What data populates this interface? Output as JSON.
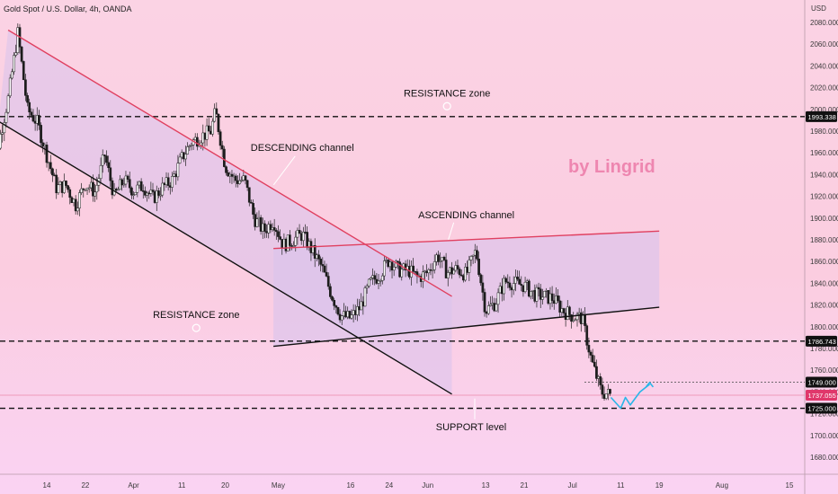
{
  "header": {
    "title": "Gold Spot / U.S. Dollar, 4h, OANDA"
  },
  "watermark": "by Lingrid",
  "colors": {
    "candle": "#ffffff",
    "wick": "#222222",
    "channel_desc_fill": "#d9c3ec",
    "resistance_red": "#e04060",
    "support_black": "#111111",
    "projection": "#29b6e8",
    "price_tag": "#e0386b"
  },
  "chart_data": {
    "type": "candlestick",
    "title": "Gold Spot / U.S. Dollar, 4h, OANDA",
    "xlabel": "",
    "ylabel": "USD",
    "ylim": [
      1665,
      2100
    ],
    "y_ticks": [
      "2080.000",
      "2060.000",
      "2040.000",
      "2020.000",
      "2000.000",
      "1980.000",
      "1960.000",
      "1940.000",
      "1920.000",
      "1900.000",
      "1880.000",
      "1860.000",
      "1840.000",
      "1820.000",
      "1800.000",
      "1780.000",
      "1760.000",
      "1740.000",
      "1720.000",
      "1700.000",
      "1680.000"
    ],
    "y_tick_values": [
      2080,
      2060,
      2040,
      2020,
      2000,
      1980,
      1960,
      1940,
      1920,
      1900,
      1880,
      1860,
      1840,
      1820,
      1800,
      1780,
      1760,
      1740,
      1720,
      1700,
      1680
    ],
    "x_ticks": [
      {
        "label": "14",
        "date": "2022-03-14"
      },
      {
        "label": "22",
        "date": "2022-03-22"
      },
      {
        "label": "Apr",
        "date": "2022-04-01"
      },
      {
        "label": "11",
        "date": "2022-04-11"
      },
      {
        "label": "20",
        "date": "2022-04-20"
      },
      {
        "label": "May",
        "date": "2022-05-01"
      },
      {
        "label": "16",
        "date": "2022-05-16"
      },
      {
        "label": "24",
        "date": "2022-05-24"
      },
      {
        "label": "Jun",
        "date": "2022-06-01"
      },
      {
        "label": "13",
        "date": "2022-06-13"
      },
      {
        "label": "21",
        "date": "2022-06-21"
      },
      {
        "label": "Jul",
        "date": "2022-07-01"
      },
      {
        "label": "11",
        "date": "2022-07-11"
      },
      {
        "label": "19",
        "date": "2022-07-19"
      },
      {
        "label": "Aug",
        "date": "2022-08-01"
      },
      {
        "label": "15",
        "date": "2022-08-15"
      }
    ],
    "price_path": [
      [
        "2022-03-02",
        1930
      ],
      [
        "2022-03-04",
        1968
      ],
      [
        "2022-03-06",
        2010
      ],
      [
        "2022-03-08",
        2070
      ],
      [
        "2022-03-10",
        2000
      ],
      [
        "2022-03-12",
        1988
      ],
      [
        "2022-03-14",
        1958
      ],
      [
        "2022-03-16",
        1928
      ],
      [
        "2022-03-18",
        1930
      ],
      [
        "2022-03-20",
        1912
      ],
      [
        "2022-03-22",
        1932
      ],
      [
        "2022-03-24",
        1924
      ],
      [
        "2022-03-26",
        1958
      ],
      [
        "2022-03-28",
        1920
      ],
      [
        "2022-03-30",
        1935
      ],
      [
        "2022-04-01",
        1925
      ],
      [
        "2022-04-03",
        1930
      ],
      [
        "2022-04-05",
        1918
      ],
      [
        "2022-04-07",
        1928
      ],
      [
        "2022-04-09",
        1935
      ],
      [
        "2022-04-11",
        1955
      ],
      [
        "2022-04-13",
        1970
      ],
      [
        "2022-04-15",
        1975
      ],
      [
        "2022-04-17",
        1980
      ],
      [
        "2022-04-18",
        1998
      ],
      [
        "2022-04-20",
        1948
      ],
      [
        "2022-04-22",
        1935
      ],
      [
        "2022-04-24",
        1935
      ],
      [
        "2022-04-26",
        1900
      ],
      [
        "2022-04-28",
        1888
      ],
      [
        "2022-04-30",
        1898
      ],
      [
        "2022-05-02",
        1875
      ],
      [
        "2022-05-04",
        1880
      ],
      [
        "2022-05-06",
        1885
      ],
      [
        "2022-05-08",
        1870
      ],
      [
        "2022-05-10",
        1855
      ],
      [
        "2022-05-12",
        1830
      ],
      [
        "2022-05-14",
        1810
      ],
      [
        "2022-05-16",
        1808
      ],
      [
        "2022-05-18",
        1818
      ],
      [
        "2022-05-20",
        1840
      ],
      [
        "2022-05-22",
        1848
      ],
      [
        "2022-05-24",
        1862
      ],
      [
        "2022-05-26",
        1852
      ],
      [
        "2022-05-28",
        1852
      ],
      [
        "2022-05-30",
        1845
      ],
      [
        "2022-06-01",
        1850
      ],
      [
        "2022-06-03",
        1866
      ],
      [
        "2022-06-05",
        1850
      ],
      [
        "2022-06-07",
        1853
      ],
      [
        "2022-06-09",
        1848
      ],
      [
        "2022-06-11",
        1870
      ],
      [
        "2022-06-13",
        1815
      ],
      [
        "2022-06-15",
        1822
      ],
      [
        "2022-06-17",
        1842
      ],
      [
        "2022-06-19",
        1840
      ],
      [
        "2022-06-21",
        1838
      ],
      [
        "2022-06-23",
        1830
      ],
      [
        "2022-06-25",
        1828
      ],
      [
        "2022-06-27",
        1826
      ],
      [
        "2022-06-29",
        1815
      ],
      [
        "2022-07-01",
        1810
      ],
      [
        "2022-07-03",
        1808
      ],
      [
        "2022-07-05",
        1768
      ],
      [
        "2022-07-07",
        1740
      ],
      [
        "2022-07-09",
        1737
      ]
    ],
    "trendlines": [
      {
        "label": "DESCENDING channel upper",
        "from": [
          "2022-03-06",
          2073
        ],
        "to": [
          "2022-06-06",
          1828
        ],
        "role": "descending-upper"
      },
      {
        "label": "DESCENDING channel lower",
        "from": [
          "2022-03-04",
          1989
        ],
        "to": [
          "2022-06-06",
          1738
        ],
        "role": "descending-lower"
      },
      {
        "label": "ASCENDING channel upper",
        "from": [
          "2022-04-30",
          1872
        ],
        "to": [
          "2022-07-19",
          1888
        ],
        "role": "ascending-upper"
      },
      {
        "label": "ASCENDING channel lower",
        "from": [
          "2022-04-30",
          1782
        ],
        "to": [
          "2022-07-19",
          1818
        ],
        "role": "ascending-lower"
      }
    ],
    "horizontal_levels": [
      {
        "price": 1993.338,
        "label": "1993.338",
        "style": "dashed"
      },
      {
        "price": 1786.743,
        "label": "1786.743",
        "style": "dashed"
      },
      {
        "price": 1749.0,
        "label": "1749.000",
        "style": "dotted"
      },
      {
        "price": 1737.055,
        "label": "1737.055",
        "style": "current"
      },
      {
        "price": 1725.0,
        "label": "1725.000",
        "style": "dashed"
      }
    ],
    "projection": [
      [
        "2022-07-09",
        1735
      ],
      [
        "2022-07-11",
        1725
      ],
      [
        "2022-07-12",
        1735
      ],
      [
        "2022-07-13",
        1728
      ],
      [
        "2022-07-15",
        1740
      ],
      [
        "2022-07-17",
        1747
      ]
    ],
    "annotations": [
      {
        "text": "RESISTANCE zone",
        "anchor": [
          "2022-06-05",
          2012
        ]
      },
      {
        "text": "DESCENDING channel",
        "anchor": [
          "2022-05-06",
          1962
        ]
      },
      {
        "text": "ASCENDING channel",
        "anchor": [
          "2022-06-09",
          1900
        ]
      },
      {
        "text": "RESISTANCE zone",
        "anchor": [
          "2022-04-14",
          1808
        ]
      },
      {
        "text": "SUPPORT level",
        "anchor": [
          "2022-06-10",
          1705
        ]
      }
    ]
  }
}
